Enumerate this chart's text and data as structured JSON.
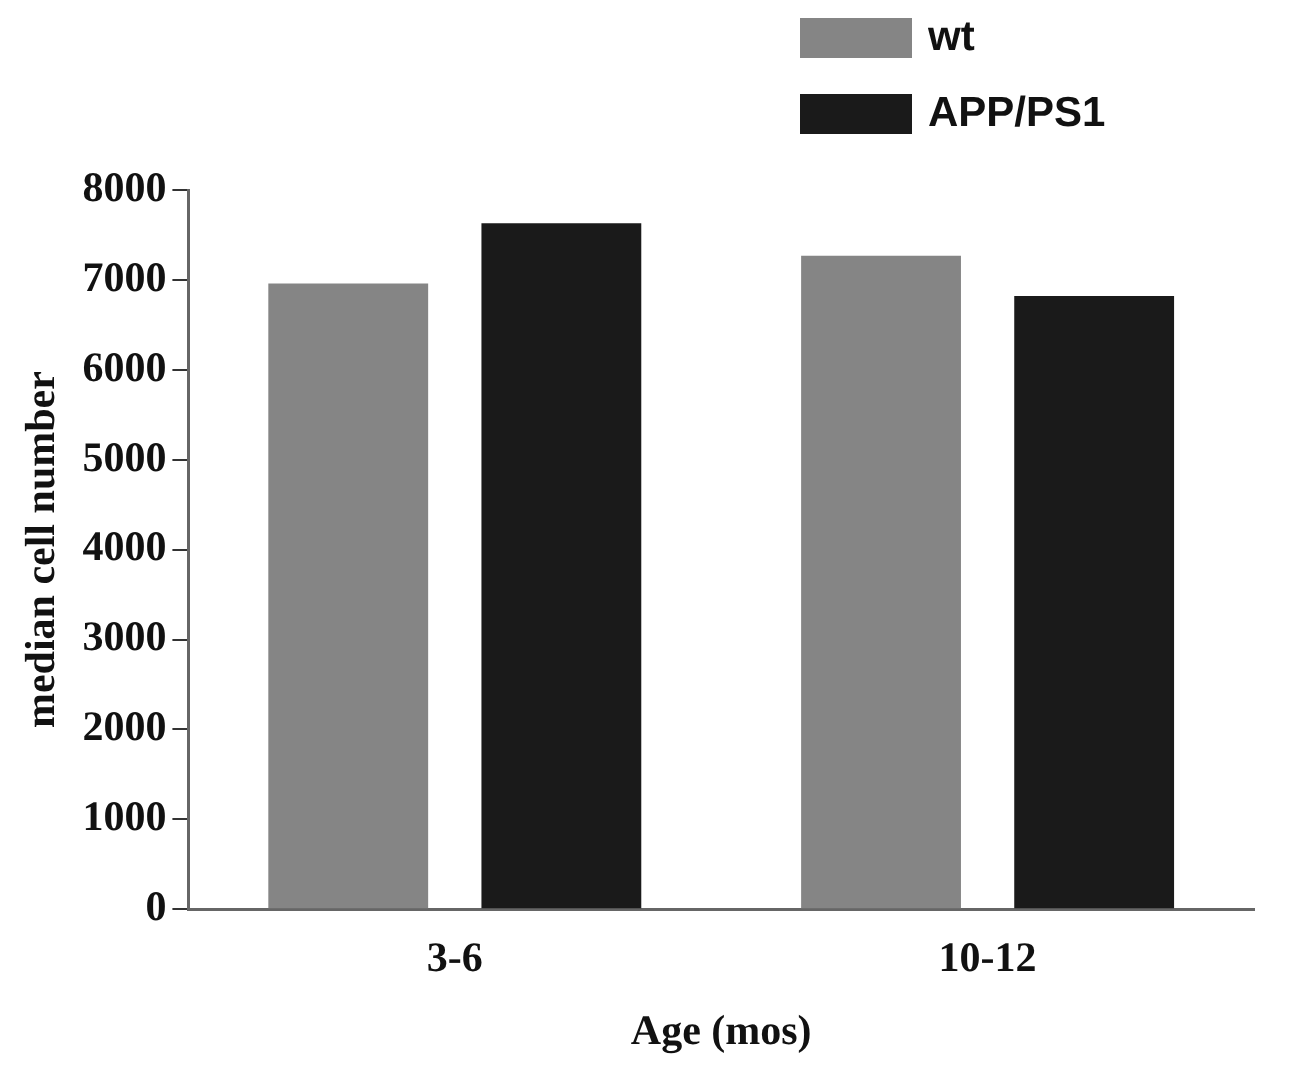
{
  "chart_data": {
    "type": "bar",
    "xlabel": "Age (mos)",
    "ylabel": "median cell number",
    "categories": [
      "3-6",
      "10-12"
    ],
    "series": [
      {
        "name": "wt",
        "color": "#858585",
        "values": [
          6960,
          7270
        ]
      },
      {
        "name": "APP/PS1",
        "color": "#1a1a1a",
        "values": [
          7630,
          6820
        ]
      }
    ],
    "ylim": [
      0,
      8000
    ],
    "yticks": [
      0,
      1000,
      2000,
      3000,
      4000,
      5000,
      6000,
      7000,
      8000
    ],
    "grid": false,
    "legend": "top right"
  }
}
